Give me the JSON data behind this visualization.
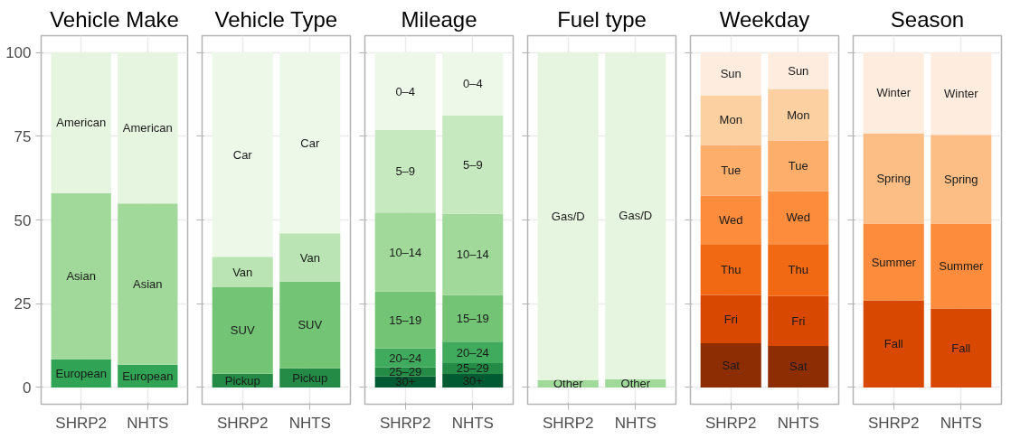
{
  "chart_data": [
    {
      "type": "bar",
      "stacked": true,
      "title": "Vehicle Make",
      "categories": [
        "SHRP2",
        "NHTS"
      ],
      "ylim": [
        -5,
        105
      ],
      "yticks": [
        0,
        25,
        50,
        75,
        100
      ],
      "grid": true,
      "series": [
        {
          "name": "European",
          "color": "#31a354",
          "values": [
            8.4,
            6.8
          ]
        },
        {
          "name": "Asian",
          "color": "#a1d99b",
          "values": [
            49.6,
            48.1
          ]
        },
        {
          "name": "American",
          "color": "#e5f5e0",
          "values": [
            42.0,
            45.1
          ]
        }
      ]
    },
    {
      "type": "bar",
      "stacked": true,
      "title": "Vehicle Type",
      "categories": [
        "SHRP2",
        "NHTS"
      ],
      "ylim": [
        -5,
        105
      ],
      "yticks": [
        0,
        25,
        50,
        75,
        100
      ],
      "grid": true,
      "tick_labels": "x",
      "series": [
        {
          "name": "Pickup",
          "color": "#238b45",
          "values": [
            4.1,
            5.7
          ]
        },
        {
          "name": "SUV",
          "color": "#74c476",
          "values": [
            25.8,
            25.9
          ]
        },
        {
          "name": "Van",
          "color": "#bae4b3",
          "values": [
            9.1,
            14.4
          ]
        },
        {
          "name": "Car",
          "color": "#edf8e9",
          "values": [
            61.0,
            54.0
          ]
        }
      ]
    },
    {
      "type": "bar",
      "stacked": true,
      "title": "Mileage",
      "categories": [
        "SHRP2",
        "NHTS"
      ],
      "ylim": [
        -5,
        105
      ],
      "yticks": [
        0,
        25,
        50,
        75,
        100
      ],
      "grid": true,
      "tick_labels": "x",
      "series": [
        {
          "name": "30+",
          "color": "#005a32",
          "values": [
            3.3,
            4.0
          ]
        },
        {
          "name": "25–29",
          "color": "#238b45",
          "values": [
            2.7,
            3.3
          ]
        },
        {
          "name": "20–24",
          "color": "#41ab5d",
          "values": [
            5.7,
            6.4
          ]
        },
        {
          "name": "15–19",
          "color": "#74c476",
          "values": [
            16.9,
            13.9
          ]
        },
        {
          "name": "10–14",
          "color": "#a1d99b",
          "values": [
            23.6,
            24.3
          ]
        },
        {
          "name": "5–9",
          "color": "#c7e9c0",
          "values": [
            24.6,
            29.3
          ]
        },
        {
          "name": "0–4",
          "color": "#edf8e9",
          "values": [
            23.2,
            18.8
          ]
        }
      ]
    },
    {
      "type": "bar",
      "stacked": true,
      "title": "Fuel type",
      "categories": [
        "SHRP2",
        "NHTS"
      ],
      "ylim": [
        -5,
        105
      ],
      "yticks": [
        0,
        25,
        50,
        75,
        100
      ],
      "grid": true,
      "tick_labels": "x",
      "series": [
        {
          "name": "Other",
          "color": "#a1d99b",
          "values": [
            2.2,
            2.5
          ]
        },
        {
          "name": "Gas/D",
          "color": "#e5f5e0",
          "values": [
            97.8,
            97.5
          ]
        }
      ]
    },
    {
      "type": "bar",
      "stacked": true,
      "title": "Weekday",
      "categories": [
        "SHRP2",
        "NHTS"
      ],
      "ylim": [
        -5,
        105
      ],
      "yticks": [
        0,
        25,
        50,
        75,
        100
      ],
      "grid": true,
      "tick_labels": "x",
      "series": [
        {
          "name": "Sat",
          "color": "#8c2d04",
          "values": [
            13.2,
            12.4
          ]
        },
        {
          "name": "Fri",
          "color": "#d94801",
          "values": [
            14.4,
            14.9
          ]
        },
        {
          "name": "Thu",
          "color": "#f16913",
          "values": [
            15.0,
            15.5
          ]
        },
        {
          "name": "Wed",
          "color": "#fd8d3c",
          "values": [
            14.6,
            15.8
          ]
        },
        {
          "name": "Tue",
          "color": "#fdae6b",
          "values": [
            15.2,
            15.1
          ]
        },
        {
          "name": "Mon",
          "color": "#fdd0a2",
          "values": [
            14.8,
            15.4
          ]
        },
        {
          "name": "Sun",
          "color": "#feedde",
          "values": [
            12.8,
            10.9
          ]
        }
      ]
    },
    {
      "type": "bar",
      "stacked": true,
      "title": "Season",
      "categories": [
        "SHRP2",
        "NHTS"
      ],
      "ylim": [
        -5,
        105
      ],
      "yticks": [
        0,
        25,
        50,
        75,
        100
      ],
      "grid": true,
      "tick_labels": "x",
      "series": [
        {
          "name": "Fall",
          "color": "#d94801",
          "values": [
            26.0,
            23.6
          ]
        },
        {
          "name": "Summer",
          "color": "#fd8d3c",
          "values": [
            22.9,
            25.3
          ]
        },
        {
          "name": "Spring",
          "color": "#fdbe85",
          "values": [
            27.0,
            26.5
          ]
        },
        {
          "name": "Winter",
          "color": "#feedde",
          "values": [
            24.1,
            24.6
          ]
        }
      ]
    }
  ]
}
